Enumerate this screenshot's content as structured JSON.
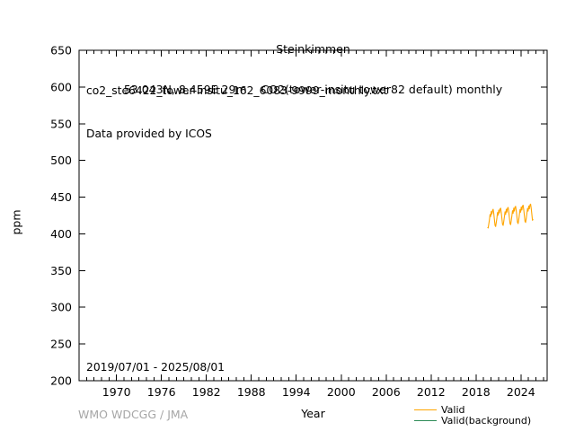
{
  "header": {
    "title": "Steinkimmen",
    "subtitle": "53.043N, 8.459E 29m    CO2(tower-insitu tower82 default) monthly"
  },
  "annotations": {
    "source_file": "co2_ste6422_tower-insitu_162_6083-9999_monthly.txt",
    "provider": "Data provided by ICOS",
    "date_range": "2019/07/01 - 2025/08/01"
  },
  "axes": {
    "xlabel": "Year",
    "ylabel": "ppm"
  },
  "footer": {
    "credit": "WMO WDCGG / JMA"
  },
  "legend": {
    "entries": [
      {
        "label": "Valid",
        "color": "#ffa500"
      },
      {
        "label": "Valid(background)",
        "color": "#2e8b57"
      }
    ]
  },
  "chart_data": {
    "type": "line",
    "title": "Steinkimmen",
    "subtitle": "53.043N, 8.459E 29m    CO2(tower-insitu tower82 default) monthly",
    "xlabel": "Year",
    "ylabel": "ppm",
    "xlim": [
      1965,
      2027.5
    ],
    "ylim": [
      200,
      650
    ],
    "x_major_ticks": [
      1970,
      1976,
      1982,
      1988,
      1994,
      2000,
      2006,
      2012,
      2018,
      2024
    ],
    "x_minor_tick_start": 1966,
    "x_minor_tick_end": 2027,
    "x_minor_tick_interval": 1,
    "y_major_tick_interval": 50,
    "grid": "off",
    "legend_position": "bottom-right",
    "series": [
      {
        "name": "Valid",
        "color": "#ffa500",
        "cadence": "monthly",
        "start_year": 2019,
        "start_month": 7,
        "end_year": 2025,
        "end_month": 8,
        "values": [
          409.0,
          408.0,
          413.5,
          419.0,
          426.5,
          423.5,
          430.5,
          427.0,
          432.0,
          433.5,
          427.5,
          419.5,
          411.5,
          410.0,
          415.5,
          421.5,
          429.0,
          425.5,
          432.5,
          428.5,
          434.0,
          435.0,
          429.0,
          421.0,
          413.0,
          411.5,
          417.0,
          423.0,
          430.0,
          426.5,
          433.5,
          429.5,
          435.0,
          436.0,
          430.0,
          422.0,
          414.0,
          412.5,
          418.0,
          424.5,
          431.5,
          428.0,
          435.0,
          431.0,
          436.5,
          437.5,
          431.5,
          423.5,
          415.5,
          414.0,
          419.5,
          426.0,
          433.0,
          429.5,
          436.5,
          432.5,
          438.0,
          439.0,
          433.0,
          425.0,
          417.0,
          415.5,
          421.0,
          427.5,
          434.5,
          431.0,
          438.0,
          434.0,
          439.5,
          440.5,
          434.5,
          426.5,
          418.5,
          420.0
        ]
      },
      {
        "name": "Valid(background)",
        "color": "#2e8b57",
        "cadence": "monthly",
        "values": []
      }
    ]
  }
}
